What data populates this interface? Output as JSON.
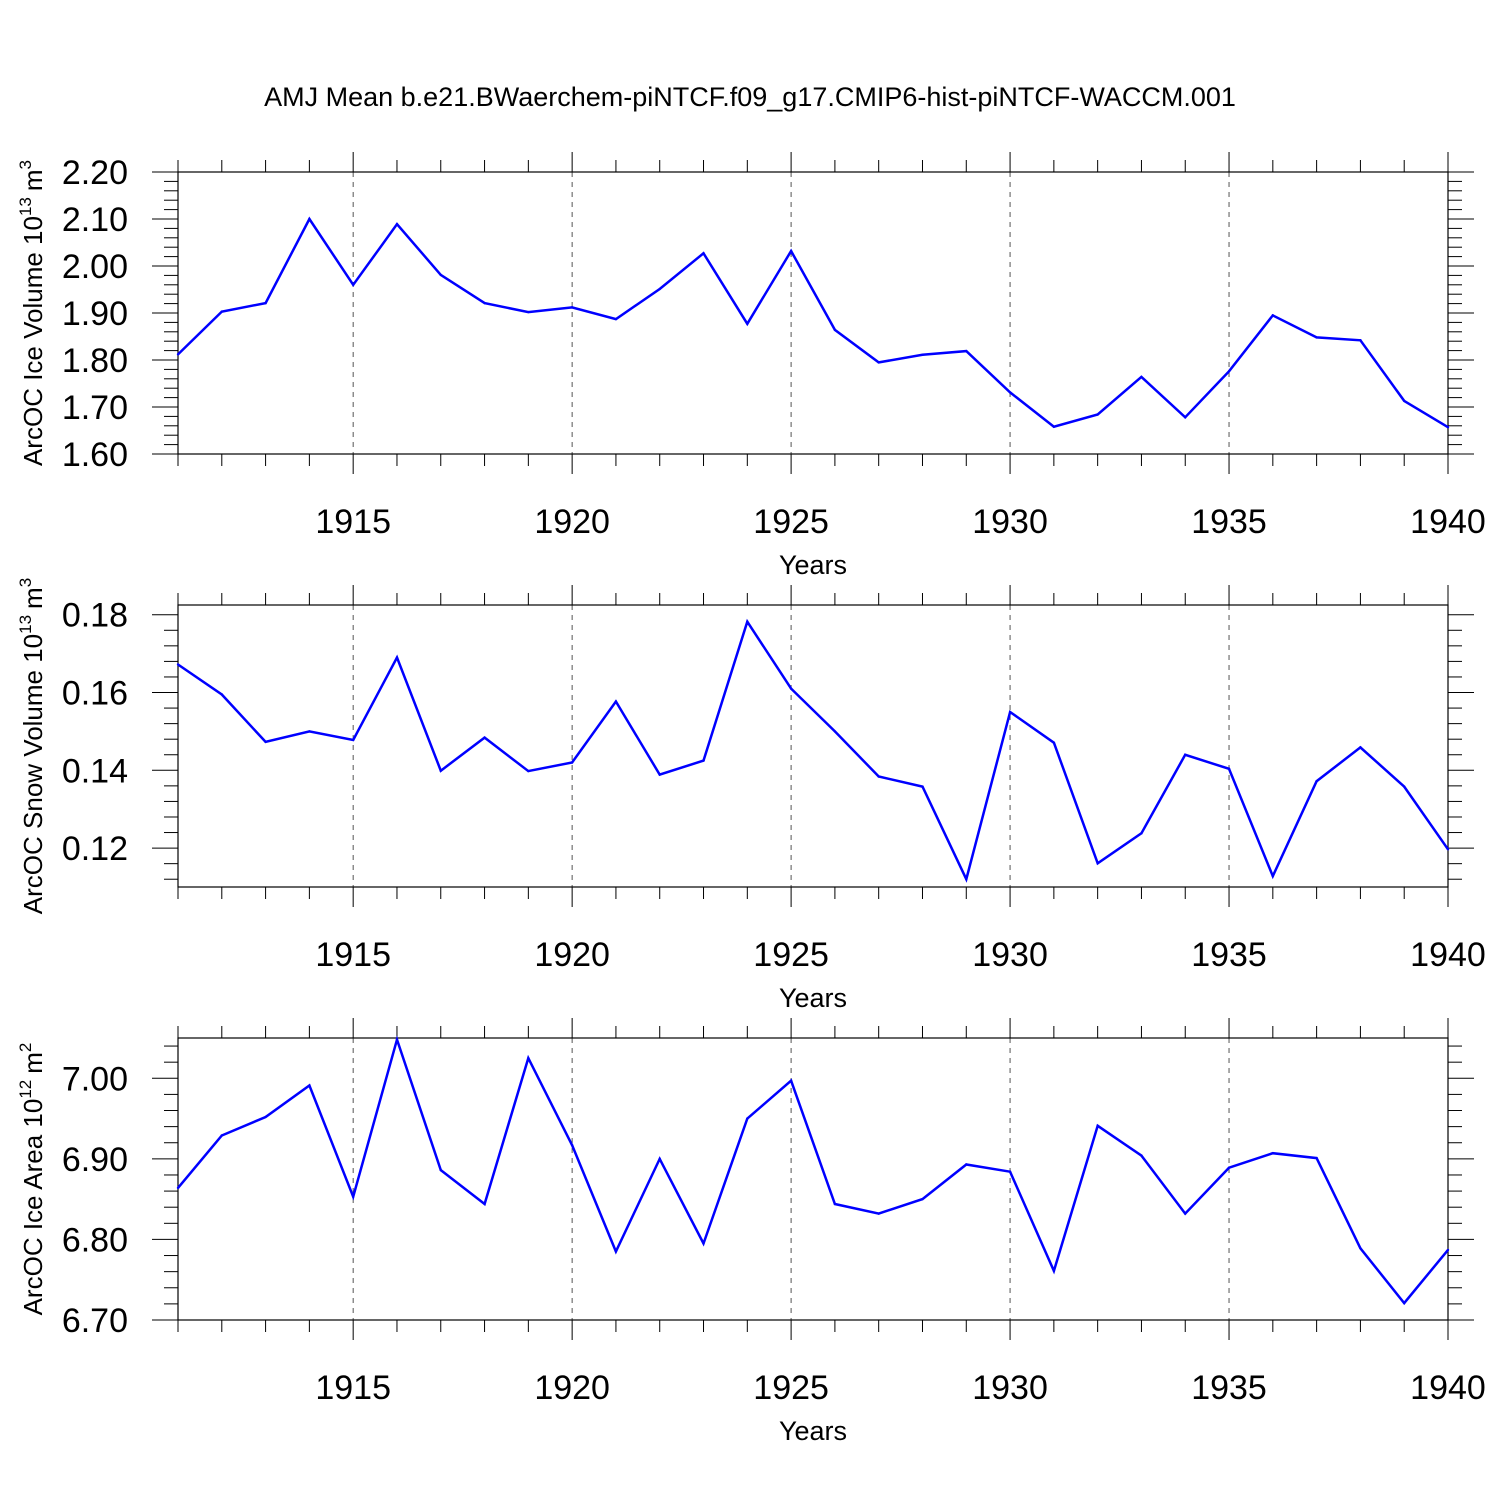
{
  "chart_data": {
    "title": "AMJ Mean b.e21.BWaerchem-piNTCF.f09_g17.CMIP6-hist-piNTCF-WACCM.001",
    "line_color": "#0000ff",
    "grid": "vertical dashed lines at major x ticks",
    "panels": [
      {
        "type": "line",
        "ylabel": "ArcOC Ice Volume 10",
        "ylabel_exp": "13",
        "ylabel_unit": "m",
        "ylabel_unit_exp": "3",
        "xlabel": "Years",
        "xlim": [
          1911,
          1940
        ],
        "ylim": [
          1.6,
          2.2
        ],
        "xticks": [
          "1915",
          "1920",
          "1925",
          "1930",
          "1935",
          "1940"
        ],
        "yticks": [
          "1.60",
          "1.70",
          "1.80",
          "1.90",
          "2.00",
          "2.10",
          "2.20"
        ],
        "x": [
          1911,
          1912,
          1913,
          1914,
          1915,
          1916,
          1917,
          1918,
          1919,
          1920,
          1921,
          1922,
          1923,
          1924,
          1925,
          1926,
          1927,
          1928,
          1929,
          1930,
          1931,
          1932,
          1933,
          1934,
          1935,
          1936,
          1937,
          1938,
          1939,
          1940
        ],
        "y": [
          1.812,
          1.903,
          1.921,
          2.1,
          1.96,
          2.089,
          1.981,
          1.921,
          1.902,
          1.912,
          1.887,
          1.951,
          2.027,
          1.877,
          2.032,
          1.864,
          1.795,
          1.811,
          1.819,
          1.731,
          1.658,
          1.684,
          1.764,
          1.678,
          1.776,
          1.895,
          1.848,
          1.842,
          1.713,
          1.657
        ]
      },
      {
        "type": "line",
        "ylabel": "ArcOC Snow Volume 10",
        "ylabel_exp": "13",
        "ylabel_unit": "m",
        "ylabel_unit_exp": "3",
        "xlabel": "Years",
        "xlim": [
          1911,
          1940
        ],
        "ylim": [
          0.11,
          0.1825
        ],
        "xticks": [
          "1915",
          "1920",
          "1925",
          "1930",
          "1935",
          "1940"
        ],
        "yticks": [
          "0.12",
          "0.14",
          "0.16",
          "0.18"
        ],
        "x": [
          1911,
          1912,
          1913,
          1914,
          1915,
          1916,
          1917,
          1918,
          1919,
          1920,
          1921,
          1922,
          1923,
          1924,
          1925,
          1926,
          1927,
          1928,
          1929,
          1930,
          1931,
          1932,
          1933,
          1934,
          1935,
          1936,
          1937,
          1938,
          1939,
          1940
        ],
        "y": [
          0.1672,
          0.1595,
          0.1473,
          0.15,
          0.1478,
          0.169,
          0.1399,
          0.1484,
          0.1398,
          0.142,
          0.1577,
          0.1389,
          0.1425,
          0.1782,
          0.161,
          0.15,
          0.1384,
          0.1358,
          0.112,
          0.155,
          0.1471,
          0.1161,
          0.1238,
          0.144,
          0.1404,
          0.1128,
          0.1372,
          0.1459,
          0.1358,
          0.1197
        ]
      },
      {
        "type": "line",
        "ylabel": "ArcOC Ice Area 10",
        "ylabel_exp": "12",
        "ylabel_unit": "m",
        "ylabel_unit_exp": "2",
        "xlabel": "Years",
        "xlim": [
          1911,
          1940
        ],
        "ylim": [
          6.7,
          7.05
        ],
        "xticks": [
          "1915",
          "1920",
          "1925",
          "1930",
          "1935",
          "1940"
        ],
        "yticks": [
          "6.70",
          "6.80",
          "6.90",
          "7.00"
        ],
        "x": [
          1911,
          1912,
          1913,
          1914,
          1915,
          1916,
          1917,
          1918,
          1919,
          1920,
          1921,
          1922,
          1923,
          1924,
          1925,
          1926,
          1927,
          1928,
          1929,
          1930,
          1931,
          1932,
          1933,
          1934,
          1935,
          1936,
          1937,
          1938,
          1939,
          1940
        ],
        "y": [
          6.864,
          6.929,
          6.952,
          6.991,
          6.853,
          7.048,
          6.886,
          6.844,
          7.025,
          6.917,
          6.785,
          6.9,
          6.795,
          6.95,
          6.997,
          6.844,
          6.832,
          6.85,
          6.893,
          6.884,
          6.761,
          6.941,
          6.904,
          6.832,
          6.889,
          6.907,
          6.901,
          6.789,
          6.721,
          6.787
        ]
      }
    ]
  }
}
